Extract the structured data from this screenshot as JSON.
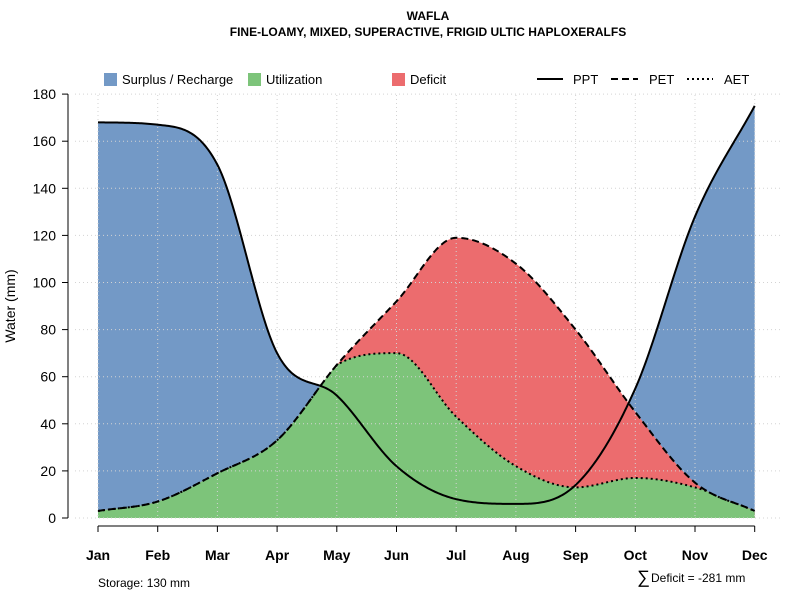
{
  "chart_data": {
    "type": "area",
    "title": "WAFLA",
    "subtitle": "FINE-LOAMY, MIXED, SUPERACTIVE, FRIGID ULTIC HAPLOXERALFS",
    "xlabel": "",
    "ylabel": "Water (mm)",
    "ylim": [
      0,
      180
    ],
    "yticks": [
      "0",
      "20",
      "40",
      "60",
      "80",
      "100",
      "120",
      "140",
      "160",
      "180"
    ],
    "grid": true,
    "categories": [
      "Jan",
      "Feb",
      "Mar",
      "Apr",
      "May",
      "Jun",
      "Jul",
      "Aug",
      "Sep",
      "Oct",
      "Nov",
      "Dec"
    ],
    "series": [
      {
        "name": "PPT",
        "style": "solid",
        "values": [
          168,
          167,
          150,
          70,
          52,
          22,
          8,
          6,
          14,
          55,
          128,
          175
        ]
      },
      {
        "name": "PET",
        "style": "dashed",
        "values": [
          3,
          7,
          19,
          33,
          65,
          92,
          119,
          108,
          80,
          45,
          15,
          3
        ]
      },
      {
        "name": "AET",
        "style": "dotted",
        "values": [
          3,
          7,
          19,
          33,
          65,
          70,
          43,
          22,
          13,
          17,
          13,
          3
        ]
      }
    ],
    "legend": {
      "position": "top",
      "fills": [
        {
          "label": "Surplus / Recharge",
          "color": "#7399C6"
        },
        {
          "label": "Utilization",
          "color": "#7DC47A"
        },
        {
          "label": "Deficit",
          "color": "#EC6C6E"
        }
      ],
      "lines": [
        {
          "label": "PPT",
          "style": "solid"
        },
        {
          "label": "PET",
          "style": "dashed"
        },
        {
          "label": "AET",
          "style": "dotted"
        }
      ]
    },
    "annotations": {
      "storage": "Storage: 130 mm",
      "deficit_symbol": "∑",
      "deficit": "Deficit = -281 mm"
    }
  }
}
